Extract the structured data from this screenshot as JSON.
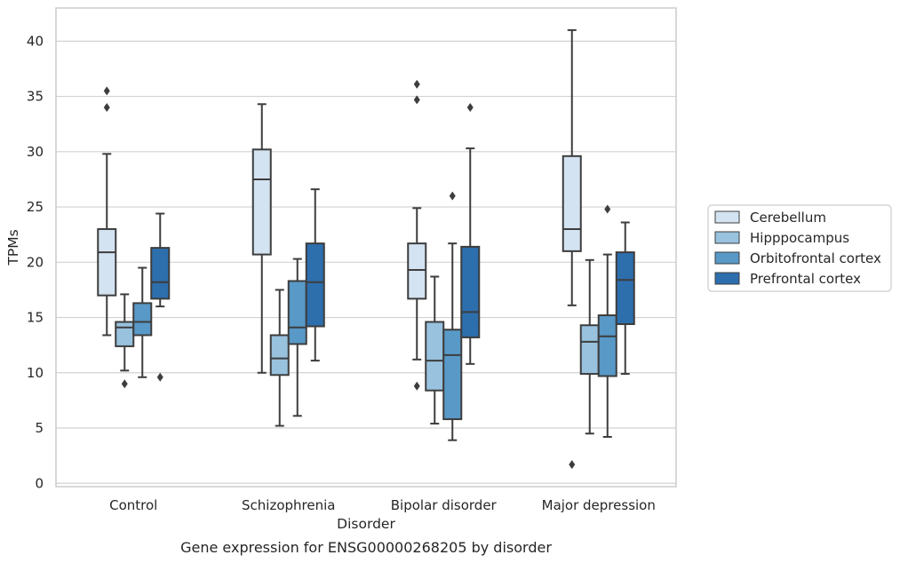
{
  "caption": "Gene expression for ENSG00000268205 by disorder",
  "chart_data": {
    "type": "boxplot",
    "xlabel": "Disorder",
    "ylabel": "TPMs",
    "ylim": [
      -0.3,
      43
    ],
    "yticks": [
      0,
      5,
      10,
      15,
      20,
      25,
      30,
      35,
      40
    ],
    "grid": "horizontal",
    "legend_position": "right",
    "categories": [
      "Control",
      "Schizophrenia",
      "Bipolar disorder",
      "Major depression"
    ],
    "series": [
      {
        "name": "Cerebellum",
        "color": "#d4e3f1",
        "boxes": [
          {
            "whislo": 13.4,
            "q1": 17.0,
            "med": 20.9,
            "q3": 23.0,
            "whishi": 29.8,
            "fliers": [
              34.0,
              35.5
            ]
          },
          {
            "whislo": 10.0,
            "q1": 20.7,
            "med": 27.5,
            "q3": 30.2,
            "whishi": 34.3,
            "fliers": []
          },
          {
            "whislo": 11.2,
            "q1": 16.7,
            "med": 19.3,
            "q3": 21.7,
            "whishi": 24.9,
            "fliers": [
              8.8,
              34.7,
              36.1
            ]
          },
          {
            "whislo": 16.1,
            "q1": 21.0,
            "med": 23.0,
            "q3": 29.6,
            "whishi": 41.0,
            "fliers": [
              1.7
            ]
          }
        ]
      },
      {
        "name": "Hipppocampus",
        "color": "#98c2de",
        "boxes": [
          {
            "whislo": 10.2,
            "q1": 12.4,
            "med": 14.1,
            "q3": 14.6,
            "whishi": 17.1,
            "fliers": [
              9.0
            ]
          },
          {
            "whislo": 5.2,
            "q1": 9.8,
            "med": 11.3,
            "q3": 13.4,
            "whishi": 17.5,
            "fliers": []
          },
          {
            "whislo": 5.4,
            "q1": 8.4,
            "med": 11.1,
            "q3": 14.6,
            "whishi": 18.7,
            "fliers": []
          },
          {
            "whislo": 4.5,
            "q1": 9.9,
            "med": 12.8,
            "q3": 14.3,
            "whishi": 20.2,
            "fliers": []
          }
        ]
      },
      {
        "name": "Orbitofrontal cortex",
        "color": "#5899c8",
        "boxes": [
          {
            "whislo": 9.6,
            "q1": 13.4,
            "med": 14.6,
            "q3": 16.3,
            "whishi": 19.5,
            "fliers": []
          },
          {
            "whislo": 6.1,
            "q1": 12.6,
            "med": 14.1,
            "q3": 18.3,
            "whishi": 20.3,
            "fliers": []
          },
          {
            "whislo": 3.9,
            "q1": 5.8,
            "med": 11.6,
            "q3": 13.9,
            "whishi": 21.7,
            "fliers": [
              26.0
            ]
          },
          {
            "whislo": 4.2,
            "q1": 9.7,
            "med": 13.3,
            "q3": 15.2,
            "whishi": 20.7,
            "fliers": [
              24.8
            ]
          }
        ]
      },
      {
        "name": "Prefrontal cortex",
        "color": "#2d6ead",
        "boxes": [
          {
            "whislo": 16.0,
            "q1": 16.7,
            "med": 18.2,
            "q3": 21.3,
            "whishi": 24.4,
            "fliers": [
              9.6
            ]
          },
          {
            "whislo": 11.1,
            "q1": 14.2,
            "med": 18.2,
            "q3": 21.7,
            "whishi": 26.6,
            "fliers": []
          },
          {
            "whislo": 10.8,
            "q1": 13.2,
            "med": 15.5,
            "q3": 21.4,
            "whishi": 30.3,
            "fliers": [
              34.0
            ]
          },
          {
            "whislo": 9.9,
            "q1": 14.4,
            "med": 18.4,
            "q3": 20.9,
            "whishi": 23.6,
            "fliers": []
          }
        ]
      }
    ]
  }
}
